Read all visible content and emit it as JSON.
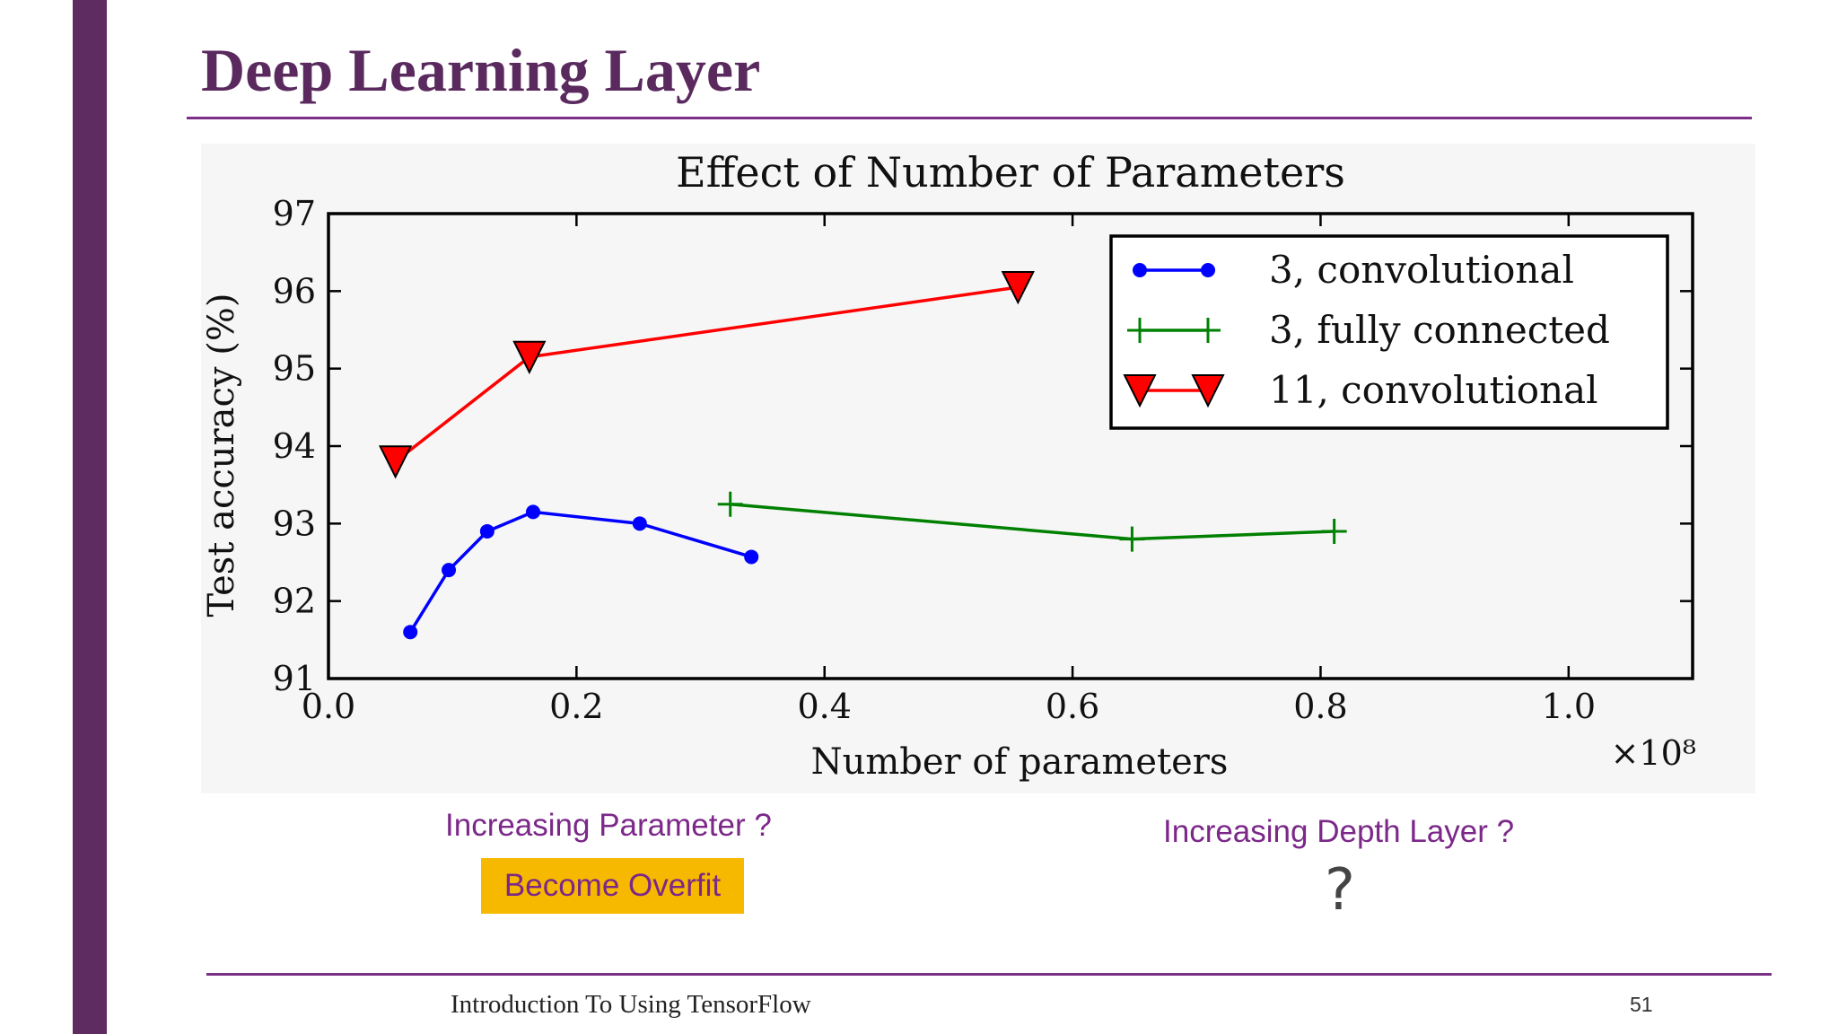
{
  "slide": {
    "title": "Deep Learning Layer",
    "caption_left": "Increasing Parameter ?",
    "badge": "Become Overfit",
    "caption_right": "Increasing Depth Layer ?",
    "question_mark": "?",
    "footer": "Introduction To Using TensorFlow",
    "page_number": "51"
  },
  "colors": {
    "accent": "#5f2c62",
    "rule": "#7b2f86",
    "caption": "#7b2889",
    "badge": "#f7b800"
  },
  "chart_data": {
    "type": "line",
    "title": "Effect of Number of Parameters",
    "xlabel": "Number of parameters",
    "ylabel": "Test accuracy (%)",
    "x_multiplier": "×10⁸",
    "xlim": [
      0.0,
      1.1
    ],
    "ylim": [
      91,
      97
    ],
    "xticks": [
      0.0,
      0.2,
      0.4,
      0.6,
      0.8,
      1.0
    ],
    "xtick_labels": [
      "0.0",
      "0.2",
      "0.4",
      "0.6",
      "0.8",
      "1.0"
    ],
    "yticks": [
      91,
      92,
      93,
      94,
      95,
      96,
      97
    ],
    "ytick_labels": [
      "91",
      "92",
      "93",
      "94",
      "95",
      "96",
      "97"
    ],
    "grid": false,
    "legend_position": "top-right",
    "series": [
      {
        "name": "3, convolutional",
        "color": "#0000ff",
        "marker": "circle",
        "x": [
          0.066,
          0.097,
          0.128,
          0.165,
          0.251,
          0.341
        ],
        "y": [
          91.6,
          92.4,
          92.9,
          93.15,
          93.0,
          92.57
        ]
      },
      {
        "name": "3, fully connected",
        "color": "#008000",
        "marker": "plus",
        "x": [
          0.324,
          0.648,
          0.811
        ],
        "y": [
          93.25,
          92.8,
          92.9
        ]
      },
      {
        "name": "11, convolutional",
        "color": "#ff0000",
        "marker": "triangle-down",
        "x": [
          0.054,
          0.162,
          0.556
        ],
        "y": [
          93.8,
          95.15,
          96.05
        ]
      }
    ]
  }
}
